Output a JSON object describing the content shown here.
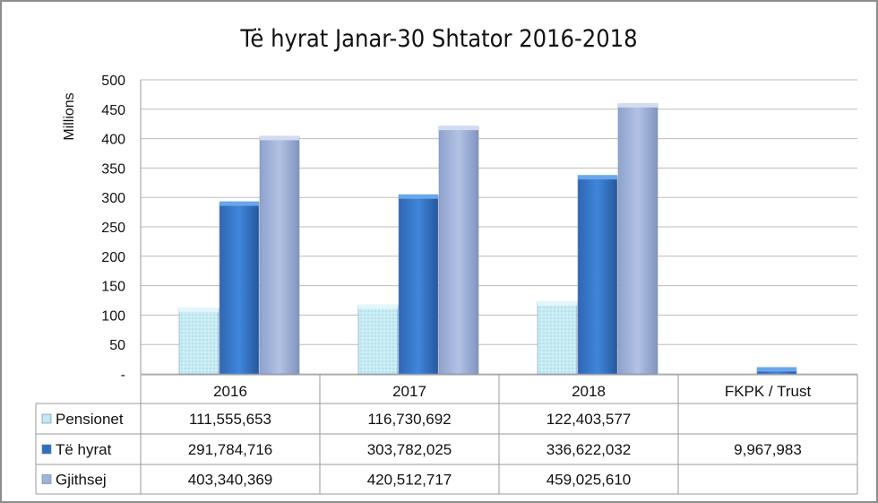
{
  "chart_data": {
    "type": "bar",
    "title": "Të hyrat Janar-30 Shtator 2016-2018",
    "ylabel": "Millions",
    "xlabel": "",
    "ylim": [
      0,
      500
    ],
    "yticks": [
      0,
      50,
      100,
      150,
      200,
      250,
      300,
      350,
      400,
      450,
      500
    ],
    "ytick_labels": [
      "-",
      "50",
      "100",
      "150",
      "200",
      "250",
      "300",
      "350",
      "400",
      "450",
      "500"
    ],
    "categories": [
      "2016",
      "2017",
      "2018",
      "FKPK / Trust"
    ],
    "grid": true,
    "legend": "data-table-left",
    "series": [
      {
        "name": "Pensionet",
        "color": "#bfe8f0",
        "values": [
          111.555653,
          116.730692,
          122.403577,
          null
        ],
        "labels": [
          "111,555,653",
          "116,730,692",
          "122,403,577",
          ""
        ]
      },
      {
        "name": "Të hyrat",
        "color": "#2f6fc0",
        "values": [
          291.784716,
          303.782025,
          336.622032,
          9.967983
        ],
        "labels": [
          "291,784,716",
          "303,782,025",
          "336,622,032",
          "9,967,983"
        ]
      },
      {
        "name": "Gjithsej",
        "color": "#9fb2d8",
        "values": [
          403.340369,
          420.512717,
          459.02561,
          null
        ],
        "labels": [
          "403,340,369",
          "420,512,717",
          "459,025,610",
          ""
        ]
      }
    ]
  }
}
